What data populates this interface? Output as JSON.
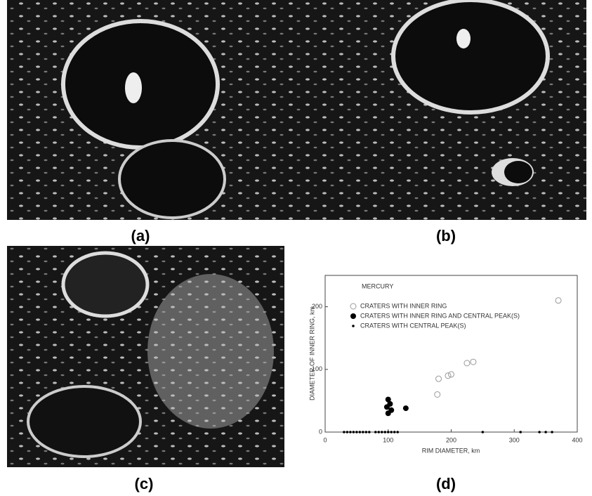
{
  "panels": [
    {
      "label": "(a)"
    },
    {
      "label": "(b)"
    },
    {
      "label": "(c)"
    },
    {
      "label": "(d)"
    }
  ],
  "chart_data": {
    "type": "scatter",
    "title": "MERCURY",
    "x_label": "RIM DIAMETER, km",
    "y_label": "DIAMETER OF INNER RING, km",
    "xlim": [
      0,
      400
    ],
    "ylim": [
      0,
      250
    ],
    "xticks": [
      0,
      100,
      200,
      300,
      400
    ],
    "yticks": [
      0,
      100,
      200
    ],
    "grid": false,
    "legend": "upper left",
    "series": [
      {
        "name": "CRATERS WITH INNER RING",
        "color": "#999999",
        "marker": "open-circle",
        "x": [
          180,
          195,
          200,
          225,
          235,
          178,
          370
        ],
        "y": [
          85,
          90,
          92,
          110,
          112,
          60,
          210
        ]
      },
      {
        "name": "CRATERS WITH INNER RING AND CENTRAL PEAK(S)",
        "color": "#000000",
        "marker": "filled-circle",
        "x": [
          100,
          103,
          98,
          105,
          100,
          128
        ],
        "y": [
          52,
          45,
          40,
          35,
          30,
          38
        ]
      },
      {
        "name": "CRATERS WITH CENTRAL PEAK(S)",
        "color": "#000000",
        "marker": "dot",
        "x": [
          30,
          35,
          40,
          45,
          50,
          55,
          60,
          65,
          70,
          80,
          85,
          90,
          95,
          100,
          105,
          110,
          115,
          250,
          310,
          340,
          350,
          360
        ],
        "y": [
          0,
          0,
          0,
          0,
          0,
          0,
          0,
          0,
          0,
          0,
          0,
          0,
          0,
          0,
          0,
          0,
          0,
          0,
          0,
          0,
          0,
          0
        ]
      }
    ]
  }
}
